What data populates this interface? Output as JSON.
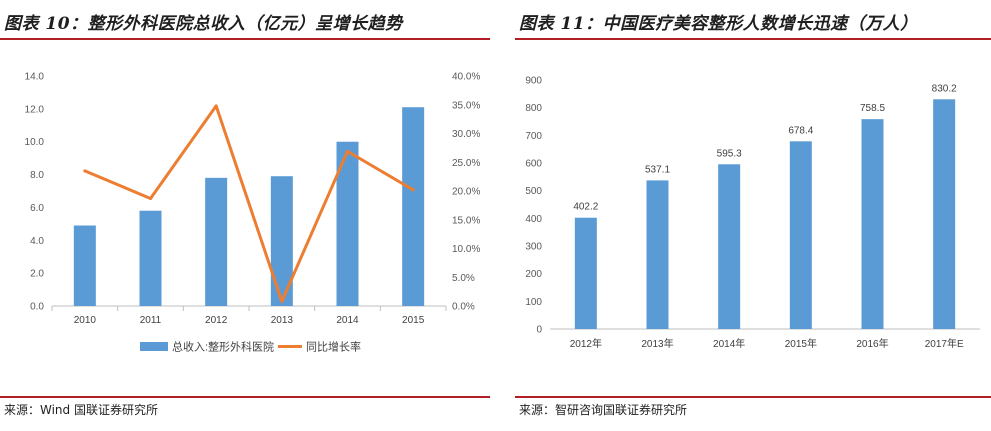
{
  "left": {
    "title": "图表 10：整形外科医院总收入（亿元）呈增长趋势",
    "source": "来源：Wind 国联证券研究所"
  },
  "right": {
    "title": "图表 11：中国医疗美容整形人数增长迅速（万人）",
    "source": "来源：智研咨询国联证券研究所"
  },
  "chart_data": [
    {
      "type": "bar+line",
      "title": "",
      "categories": [
        "2010",
        "2011",
        "2012",
        "2013",
        "2014",
        "2015"
      ],
      "series": [
        {
          "name": "总收入:整形外科医院",
          "type": "bar",
          "axis": "left",
          "values": [
            4.9,
            5.8,
            7.8,
            7.9,
            10.0,
            12.1
          ]
        },
        {
          "name": "同比增长率",
          "type": "line",
          "axis": "right",
          "values": [
            23.5,
            18.7,
            34.8,
            0.8,
            26.9,
            20.2
          ]
        }
      ],
      "y_left": {
        "ylim": [
          0,
          14
        ],
        "ticks": [
          "0.0",
          "2.0",
          "4.0",
          "6.0",
          "8.0",
          "10.0",
          "12.0",
          "14.0"
        ]
      },
      "y_right": {
        "ylim": [
          0,
          40
        ],
        "ticks": [
          "0.0%",
          "5.0%",
          "10.0%",
          "15.0%",
          "20.0%",
          "25.0%",
          "30.0%",
          "35.0%",
          "40.0%"
        ]
      },
      "legend": "bottom",
      "colors": {
        "bar": "#5b9bd5",
        "line": "#ed7d31"
      }
    },
    {
      "type": "bar",
      "title": "",
      "categories": [
        "2012年",
        "2013年",
        "2014年",
        "2015年",
        "2016年",
        "2017年E"
      ],
      "values": [
        402.2,
        537.1,
        595.3,
        678.4,
        758.5,
        830.2
      ],
      "labels": [
        "402.2",
        "537.1",
        "595.3",
        "678.4",
        "758.5",
        "830.2"
      ],
      "ylim": [
        0,
        900
      ],
      "ticks": [
        "0",
        "100",
        "200",
        "300",
        "400",
        "500",
        "600",
        "700",
        "800",
        "900"
      ],
      "legend": "none",
      "colors": {
        "bar": "#5b9bd5"
      }
    }
  ]
}
